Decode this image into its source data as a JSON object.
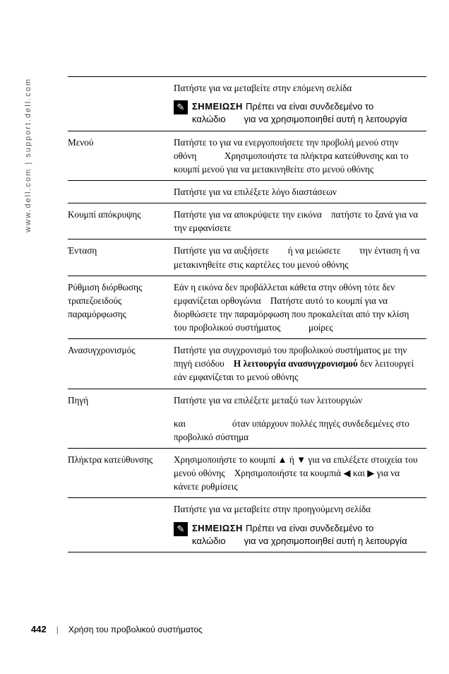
{
  "sidetext": "www.dell.com | support.dell.com",
  "rows": [
    {
      "left": "",
      "right_html": "Πατήστε για να μεταβείτε στην επόμενη σελίδα",
      "note": {
        "label": "ΣΗΜΕΙΩΣΗ",
        "text_a": "Πρέπει να είναι συνδεδεμένο το καλώδιο",
        "text_b": "για να χρησιμοποιηθεί αυτή η λειτουργία"
      }
    },
    {
      "left": "Μενού",
      "right_html": "Πατήστε το για να ενεργοποιήσετε την προβολή μενού στην οθόνη   Χρησιμοποιήστε τα πλήκτρα κατεύθυνσης και το κουμπί μενού για να μετακινηθείτε στο μενού οθόνης"
    },
    {
      "left": "",
      "right_html": "Πατήστε για να επιλέξετε λόγο διαστάσεων"
    },
    {
      "left": "Κουμπί απόκρυψης",
      "right_html": "Πατήστε για να αποκρύψετε την εικόνα πατήστε το ξανά για να την εμφανίσετε"
    },
    {
      "left": "Ένταση",
      "right_html": "Πατήστε για να αυξήσετε  ή να μειώσετε  την ένταση ή να μετακινηθείτε στις καρτέλες του μενού οθόνης"
    },
    {
      "left": "Ρύθμιση διόρθωσης τραπεζοειδούς παραμόρφωσης",
      "right_html": "Εάν η εικόνα δεν προβάλλεται κάθετα στην οθόνη τότε δεν εμφανίζεται ορθογώνια Πατήστε αυτό το κουμπί για να διορθώσετε την παραμόρφωση που προκαλείται από την κλίση του προβολικού συστήματος   μοίρες"
    },
    {
      "left": "Ανασυγχρονισμός",
      "right_seg": [
        {
          "t": "Πατήστε για συγχρονισμό του προβολικού συστήματος με την πηγή εισόδου "
        },
        {
          "t": "Η λειτουργία ανασυγχρονισμού",
          "b": true
        },
        {
          "t": " δεν λειτουργεί εάν εμφανίζεται το μενού οθόνης"
        }
      ]
    },
    {
      "left": "Πηγή",
      "right_html": "Πατήστε για να επιλέξετε μεταξύ των λειτουργιών\n\nκαι     όταν υπάρχουν πολλές πηγές συνδεδεμένες στο προβολικό σύστημα"
    },
    {
      "left": "Πλήκτρα κατεύθυνσης",
      "right_seg": [
        {
          "t": "Χρησιμοποιήστε το κουμπί "
        },
        {
          "t": "▲",
          "tri": true
        },
        {
          "t": " ή "
        },
        {
          "t": "▼",
          "tri": true
        },
        {
          "t": "  για να επιλέξετε στοιχεία του μενού οθόνης Χρησιμοποιήστε τα κουμπιά "
        },
        {
          "t": "◀",
          "tri": true
        },
        {
          "t": " και "
        },
        {
          "t": "▶",
          "tri": true
        },
        {
          "t": " για να κάνετε ρυθμίσεις"
        }
      ]
    },
    {
      "left": "",
      "right_html": "Πατήστε για να μεταβείτε στην προηγούμενη σελίδα",
      "note": {
        "label": "ΣΗΜΕΙΩΣΗ",
        "text_a": "Πρέπει να είναι συνδεδεμένο το καλώδιο",
        "text_b": "για να χρησιμοποιηθεί αυτή η λειτουργία"
      },
      "last": true
    }
  ],
  "footer": {
    "page": "442",
    "sep": "|",
    "title": "Χρήση του προβολικού συστήματος"
  },
  "icons": {
    "note_glyph": "✎"
  }
}
